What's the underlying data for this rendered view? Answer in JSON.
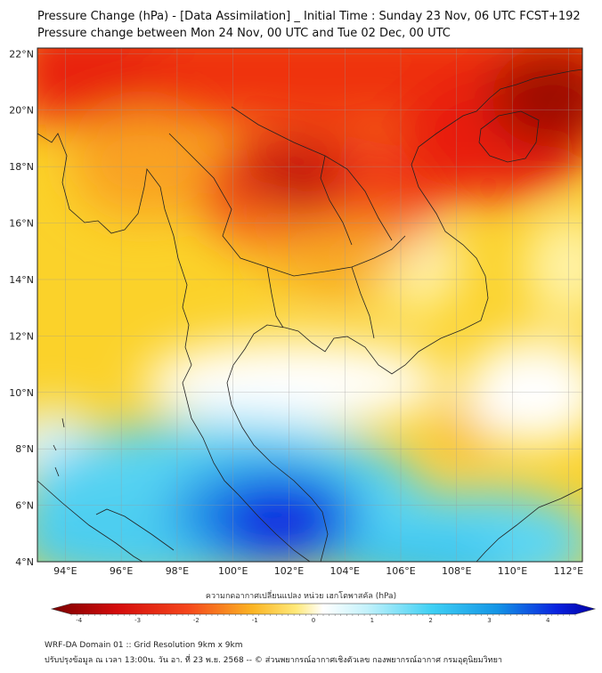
{
  "title": {
    "line1": "Pressure Change (hPa) - [Data Assimilation] _ Initial Time : Sunday 23 Nov, 06 UTC FCST+192",
    "line2": "Pressure change between Mon 24 Nov, 00 UTC and Tue 02 Dec, 00 UTC"
  },
  "map": {
    "lat_labels": [
      "22°N",
      "20°N",
      "18°N",
      "16°N",
      "14°N",
      "12°N",
      "10°N",
      "8°N",
      "6°N",
      "4°N"
    ],
    "lon_labels": [
      "94°E",
      "96°E",
      "98°E",
      "100°E",
      "102°E",
      "104°E",
      "106°E",
      "108°E",
      "110°E",
      "112°E"
    ],
    "colors": {
      "strong_fall": "#8b0000",
      "fall": "#e8200b",
      "weak_fall": "#fbd21e",
      "neutral": "#ffffff",
      "weak_rise": "#37c9f2",
      "strong_rise": "#0a1ae0",
      "coastline": "#222222"
    }
  },
  "colorbar": {
    "title": "ความกดอากาศเปลี่ยนแปลง หน่วย เฮกโตพาสคัล (hPa)",
    "ticks": [
      "-4",
      "-3",
      "-2",
      "-1",
      "0",
      "1",
      "2",
      "3",
      "4"
    ]
  },
  "footer": {
    "line1": "WRF-DA Domain 01 :: Grid Resolution 9km x 9km",
    "line2": "ปรับปรุงข้อมูล ณ เวลา 13:00น. วัน อา. ที่ 23 พ.ย. 2568 -- © ส่วนพยากรณ์อากาศเชิงตัวเลข กองพยากรณ์อากาศ กรมอุตุนิยมวิทยา"
  }
}
